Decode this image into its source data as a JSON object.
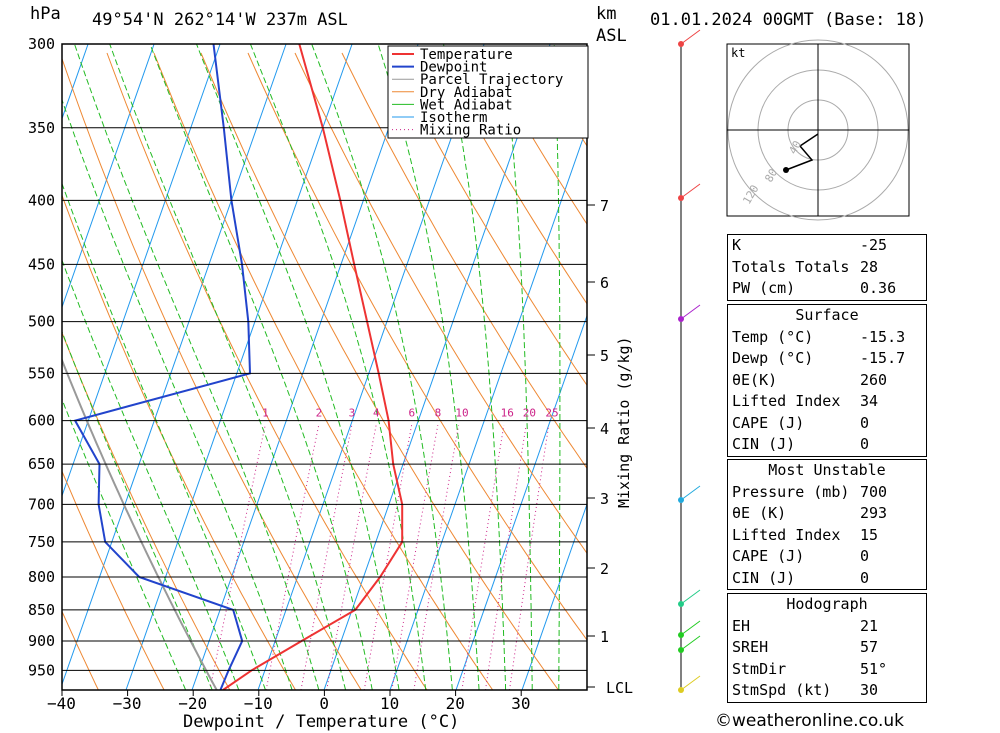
{
  "header": {
    "pressure_unit": "hPa",
    "location": "49°54'N 262°14'W 237m ASL",
    "km_unit": "km",
    "asl_label": "ASL",
    "datetime": "01.01.2024 00GMT (Base: 18)"
  },
  "chart_data": {
    "type": "line",
    "title": "",
    "xlabel": "Dewpoint / Temperature (°C)",
    "ylabel_right": "Mixing Ratio (g/kg)",
    "xlim": [
      -40,
      40
    ],
    "ylim_hpa": [
      300,
      985
    ],
    "x_ticks": [
      "−40",
      "−30",
      "−20",
      "−10",
      "0",
      "10",
      "20",
      "30"
    ],
    "pressure_ticks": [
      "300",
      "350",
      "400",
      "450",
      "500",
      "550",
      "600",
      "650",
      "700",
      "750",
      "800",
      "850",
      "900",
      "950"
    ],
    "km_ticks": [
      "7",
      "6",
      "5",
      "4",
      "3",
      "2",
      "1"
    ],
    "lcl_label": "LCL",
    "mixing_ratio_labels": [
      "1",
      "2",
      "3",
      "4",
      "6",
      "8",
      "10",
      "16",
      "20",
      "25"
    ],
    "legend": [
      "Temperature",
      "Dewpoint",
      "Parcel Trajectory",
      "Dry Adiabat",
      "Wet Adiabat",
      "Isotherm",
      "Mixing Ratio"
    ],
    "colors": {
      "temperature": "#ee3333",
      "dewpoint": "#2244cc",
      "parcel": "#999999",
      "dry_adiabat": "#ee8833",
      "wet_adiabat": "#22bb22",
      "isotherm": "#2299ee",
      "mixing_ratio": "#cc2288"
    },
    "series": [
      {
        "name": "Temperature",
        "points": [
          [
            -15.3,
            985
          ],
          [
            -12,
            950
          ],
          [
            -6,
            900
          ],
          [
            0.5,
            850
          ],
          [
            2.5,
            800
          ],
          [
            4,
            750
          ],
          [
            2,
            700
          ],
          [
            -1.5,
            650
          ],
          [
            -4.5,
            600
          ],
          [
            -8.5,
            550
          ],
          [
            -13,
            500
          ],
          [
            -18,
            450
          ],
          [
            -23.5,
            400
          ],
          [
            -30,
            350
          ],
          [
            -38,
            300
          ]
        ]
      },
      {
        "name": "Dewpoint",
        "points": [
          [
            -15.7,
            985
          ],
          [
            -15.5,
            950
          ],
          [
            -15,
            900
          ],
          [
            -18,
            850
          ],
          [
            -34,
            800
          ],
          [
            -41,
            750
          ],
          [
            -44,
            700
          ],
          [
            -46,
            650
          ],
          [
            -52,
            600
          ],
          [
            -28,
            550
          ],
          [
            -31,
            500
          ],
          [
            -35,
            450
          ],
          [
            -40,
            400
          ],
          [
            -45,
            350
          ],
          [
            -51,
            300
          ]
        ]
      }
    ],
    "hodograph": {
      "unit_label": "kt",
      "ring_labels": [
        "40",
        "80",
        "120"
      ]
    }
  },
  "indices": {
    "k_label": "K",
    "k_value": "-25",
    "tt_label": "Totals Totals",
    "tt_value": "28",
    "pw_label": "PW (cm)",
    "pw_value": "0.36",
    "surface": {
      "title": "Surface",
      "temp_label": "Temp (°C)",
      "temp_value": "-15.3",
      "dewp_label": "Dewp (°C)",
      "dewp_value": "-15.7",
      "theta_label": "θE(K)",
      "theta_value": "260",
      "li_label": "Lifted Index",
      "li_value": "34",
      "cape_label": "CAPE (J)",
      "cape_value": "0",
      "cin_label": "CIN (J)",
      "cin_value": "0"
    },
    "most_unstable": {
      "title": "Most Unstable",
      "pressure_label": "Pressure (mb)",
      "pressure_value": "700",
      "theta_label": "θE (K)",
      "theta_value": "293",
      "li_label": "Lifted Index",
      "li_value": "15",
      "cape_label": "CAPE (J)",
      "cape_value": "0",
      "cin_label": "CIN (J)",
      "cin_value": "0"
    },
    "hodograph": {
      "title": "Hodograph",
      "eh_label": "EH",
      "eh_value": "21",
      "sreh_label": "SREH",
      "sreh_value": "57",
      "stmdir_label": "StmDir",
      "stmdir_value": "51°",
      "stmspd_label": "StmSpd (kt)",
      "stmspd_value": "30"
    }
  },
  "footer": "©weatheronline.co.uk"
}
